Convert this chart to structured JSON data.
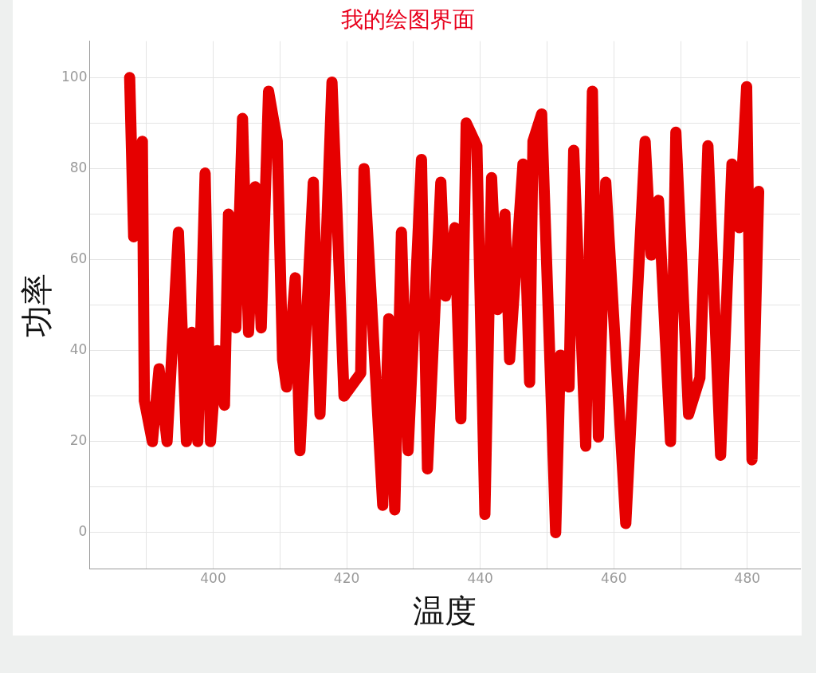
{
  "chart_data": {
    "type": "line",
    "title": "我的绘图界面",
    "xlabel": "温度",
    "ylabel": "功率",
    "series": [
      {
        "color": "#e60000",
        "x": [
          387.5,
          388.1,
          389.4,
          389.7,
          390.9,
          391.9,
          393.1,
          394.8,
          396.0,
          396.8,
          397.7,
          398.8,
          399.6,
          400.6,
          401.7,
          402.3,
          403.4,
          404.4,
          405.3,
          406.3,
          407.2,
          408.3,
          409.6,
          410.4,
          411.0,
          412.3,
          413.0,
          415.0,
          416.0,
          417.8,
          419.6,
          422.1,
          422.6,
          425.4,
          426.3,
          427.2,
          428.2,
          429.2,
          431.2,
          432.1,
          434.1,
          434.8,
          436.2,
          437.1,
          437.9,
          439.5,
          440.7,
          441.7,
          442.6,
          443.7,
          444.4,
          446.4,
          447.4,
          447.9,
          449.2,
          451.3,
          452.0,
          453.3,
          454.0,
          455.8,
          456.8,
          457.7,
          458.8,
          461.8,
          464.7,
          465.6,
          466.7,
          468.5,
          469.3,
          471.2,
          472.9,
          474.1,
          476.0,
          477.7,
          478.8,
          479.9,
          480.7,
          481.7
        ],
        "values": [
          100,
          65,
          86,
          29,
          20,
          36,
          20,
          66,
          20,
          44,
          20,
          79,
          20,
          40,
          28,
          70,
          45,
          91,
          44,
          76,
          45,
          97,
          86,
          38,
          32,
          56,
          18,
          77,
          26,
          99,
          30,
          35,
          80,
          6,
          47,
          5,
          66,
          18,
          82,
          14,
          77,
          52,
          67,
          25,
          90,
          85,
          4,
          78,
          49,
          70,
          38,
          81,
          33,
          86,
          92,
          0,
          39,
          32,
          84,
          19,
          97,
          21,
          77,
          2,
          86,
          61,
          73,
          20,
          88,
          26,
          34,
          85,
          17,
          81,
          67,
          98,
          16,
          75
        ]
      }
    ],
    "xlim": [
      381.5,
      487.9
    ],
    "ylim": [
      -8,
      108
    ],
    "xticks": [
      {
        "value": 390,
        "label": null
      },
      400,
      {
        "value": 410,
        "label": null
      },
      420,
      {
        "value": 430,
        "label": null
      },
      440,
      {
        "value": 450,
        "label": null
      },
      460,
      {
        "value": 470,
        "label": null
      },
      480
    ],
    "yticks": [
      0,
      {
        "value": 10,
        "label": null
      },
      20,
      {
        "value": 30,
        "label": null
      },
      40,
      {
        "value": 50,
        "label": null
      },
      60,
      {
        "value": 70,
        "label": null
      },
      80,
      {
        "value": 90,
        "label": null
      },
      100
    ],
    "grid": true,
    "line_style": "solid"
  }
}
